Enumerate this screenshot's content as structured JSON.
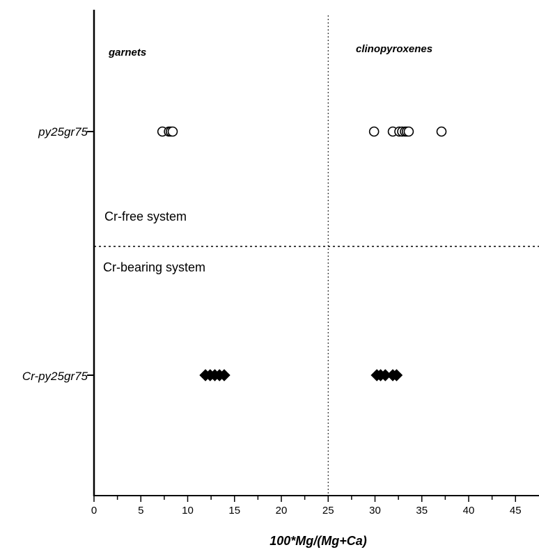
{
  "chart_data": {
    "type": "scatter",
    "xlabel": "100*Mg/(Mg+Ca)",
    "xlim": [
      0,
      47.5
    ],
    "x_ticks": [
      0,
      5,
      10,
      15,
      20,
      25,
      30,
      35,
      40,
      45
    ],
    "categories": [
      "py25gr75",
      "Cr-py25gr75"
    ],
    "panel_labels": [
      "garnets",
      "clinopyroxenes"
    ],
    "region_labels": [
      "Cr-free system",
      "Cr-bearing system"
    ],
    "divider_x": 25,
    "series": [
      {
        "category": "py25gr75",
        "marker": "open-circle",
        "values": [
          7.3,
          8.0,
          8.2,
          8.4,
          29.9,
          31.9,
          32.6,
          32.9,
          33.2,
          33.4,
          33.6,
          37.1
        ]
      },
      {
        "category": "Cr-py25gr75",
        "marker": "filled-diamond",
        "values": [
          11.9,
          12.4,
          12.9,
          13.4,
          13.9,
          30.2,
          30.6,
          31.1,
          31.9,
          32.3
        ]
      }
    ]
  }
}
